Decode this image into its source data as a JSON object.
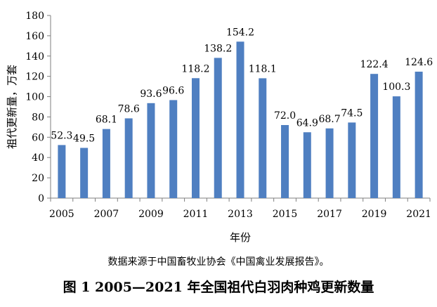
{
  "chart_data": {
    "type": "bar",
    "categories": [
      "2005",
      "2006",
      "2007",
      "2008",
      "2009",
      "2010",
      "2011",
      "2012",
      "2013",
      "2014",
      "2015",
      "2016",
      "2017",
      "2018",
      "2019",
      "2020",
      "2021"
    ],
    "values": [
      52.3,
      49.5,
      68.1,
      78.6,
      93.6,
      96.6,
      118.2,
      138.2,
      154.2,
      118.1,
      72.0,
      64.9,
      68.7,
      74.5,
      122.4,
      100.3,
      124.6
    ],
    "data_labels": [
      "52.3",
      "49.5",
      "68.1",
      "78.6",
      "93.6",
      "96.6",
      "118.2",
      "138.2",
      "154.2",
      "118.1",
      "72.0",
      "64.9",
      "68.7",
      "74.5",
      "122.4",
      "100.3",
      "124.6"
    ],
    "x_tick_labels": [
      "2005",
      "",
      "2007",
      "",
      "2009",
      "",
      "2011",
      "",
      "2013",
      "",
      "2015",
      "",
      "2017",
      "",
      "2019",
      "",
      "2021"
    ],
    "y_ticks": [
      0,
      20,
      40,
      60,
      80,
      100,
      120,
      140,
      160,
      180
    ],
    "ylim": [
      0,
      180
    ],
    "xlabel": "年份",
    "ylabel": "祖代更新量，万套",
    "bar_color": "#4f7fc1",
    "grid": false
  },
  "source_note": "数据来源于中国畜牧业协会《中国禽业发展报告》。",
  "caption": "图 1 2005—2021 年全国祖代白羽肉种鸡更新数量"
}
